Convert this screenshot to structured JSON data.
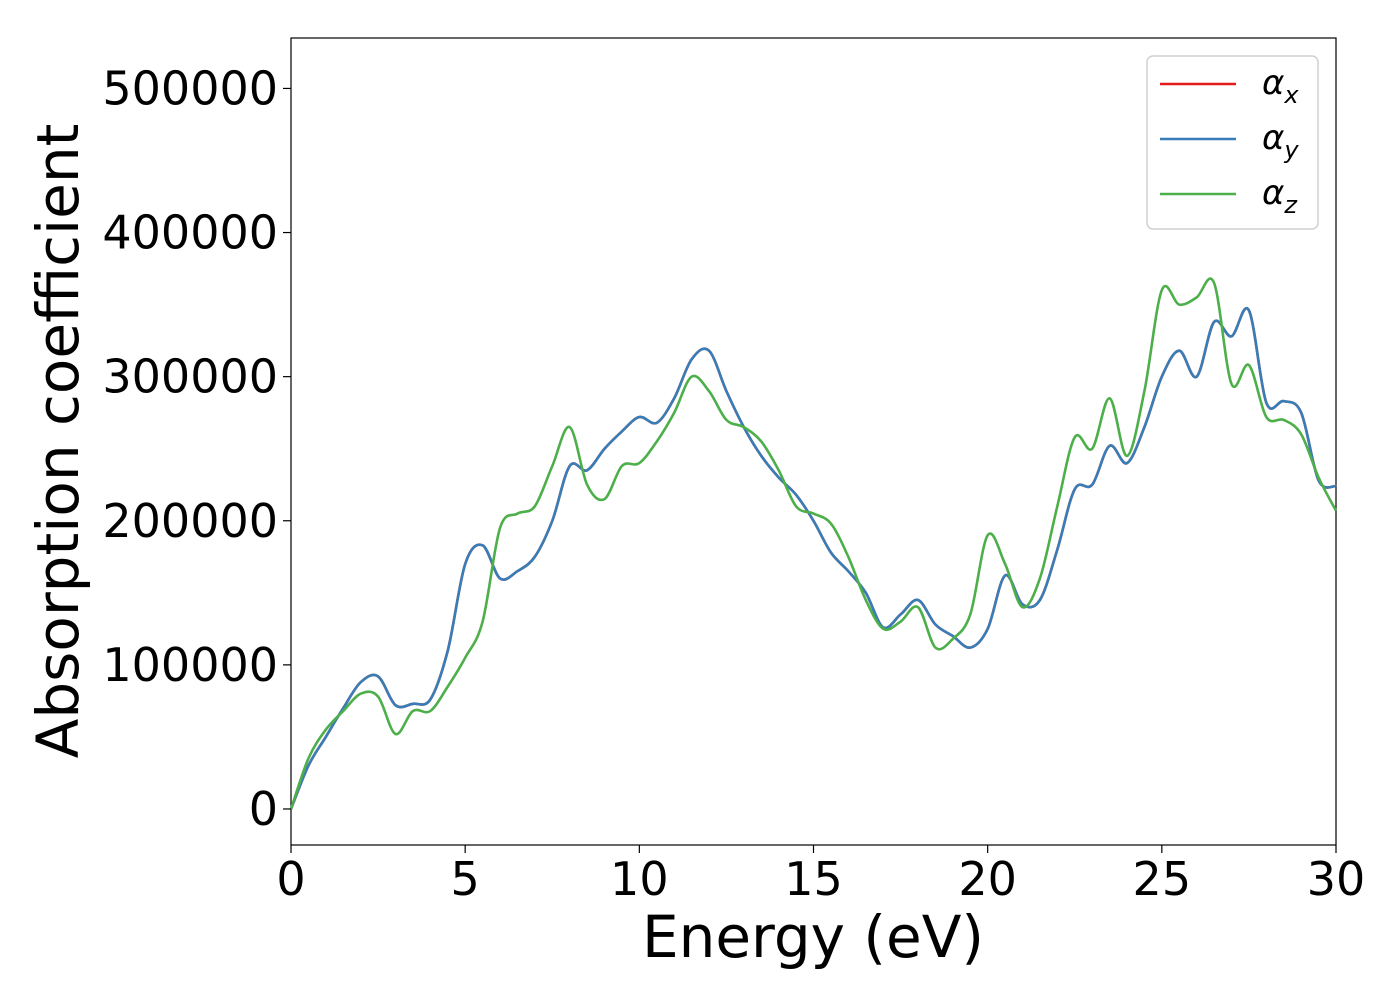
{
  "chart_data": {
    "type": "line",
    "xlabel": "Energy (eV)",
    "ylabel": "Absorption coefficient",
    "xlim": [
      0,
      30
    ],
    "ylim": [
      -25000,
      535000
    ],
    "xticks": [
      0,
      5,
      10,
      15,
      20,
      25,
      30
    ],
    "yticks": [
      0,
      100000,
      200000,
      300000,
      400000,
      500000
    ],
    "grid": false,
    "legend_position": "top-right",
    "x": [
      0,
      0.5,
      1,
      1.5,
      2,
      2.5,
      3,
      3.5,
      4,
      4.5,
      5,
      5.5,
      6,
      6.5,
      7,
      7.5,
      8,
      8.5,
      9,
      9.5,
      10,
      10.5,
      11,
      11.5,
      12,
      12.5,
      13,
      13.5,
      14,
      14.5,
      15,
      15.5,
      16,
      16.5,
      17,
      17.5,
      18,
      18.5,
      19,
      19.5,
      20,
      20.5,
      21,
      21.5,
      22,
      22.5,
      23,
      23.5,
      24,
      24.5,
      25,
      25.5,
      26,
      26.5,
      27,
      27.5,
      28,
      28.5,
      29,
      29.5,
      30
    ],
    "series": [
      {
        "name": "α",
        "subscript": "x",
        "color": "#e41a1c",
        "values": [
          0,
          30000,
          50000,
          70000,
          88000,
          92000,
          72000,
          73000,
          76000,
          110000,
          170000,
          183000,
          160000,
          165000,
          175000,
          200000,
          238000,
          235000,
          250000,
          262000,
          272000,
          268000,
          285000,
          312000,
          318000,
          290000,
          265000,
          245000,
          230000,
          218000,
          200000,
          178000,
          165000,
          150000,
          126000,
          135000,
          145000,
          128000,
          120000,
          112000,
          125000,
          162000,
          142000,
          145000,
          180000,
          222000,
          225000,
          252000,
          240000,
          265000,
          300000,
          318000,
          300000,
          338000,
          328000,
          346000,
          282000,
          283000,
          275000,
          228000,
          224000
        ]
      },
      {
        "name": "α",
        "subscript": "y",
        "color": "#377eb8",
        "values": [
          0,
          30000,
          50000,
          70000,
          88000,
          92000,
          72000,
          73000,
          76000,
          110000,
          170000,
          183000,
          160000,
          165000,
          175000,
          200000,
          238000,
          235000,
          250000,
          262000,
          272000,
          268000,
          285000,
          312000,
          318000,
          290000,
          265000,
          245000,
          230000,
          218000,
          200000,
          178000,
          165000,
          150000,
          126000,
          135000,
          145000,
          128000,
          120000,
          112000,
          125000,
          162000,
          142000,
          145000,
          180000,
          222000,
          225000,
          252000,
          240000,
          265000,
          300000,
          318000,
          300000,
          338000,
          328000,
          346000,
          282000,
          283000,
          275000,
          228000,
          224000
        ]
      },
      {
        "name": "α",
        "subscript": "z",
        "color": "#4daf4a",
        "values": [
          0,
          35000,
          55000,
          68000,
          80000,
          78000,
          52000,
          68000,
          68000,
          85000,
          105000,
          130000,
          195000,
          205000,
          210000,
          238000,
          265000,
          225000,
          215000,
          238000,
          240000,
          255000,
          275000,
          300000,
          290000,
          270000,
          265000,
          255000,
          235000,
          210000,
          205000,
          198000,
          175000,
          145000,
          125000,
          130000,
          140000,
          112000,
          118000,
          135000,
          190000,
          170000,
          140000,
          160000,
          210000,
          258000,
          250000,
          285000,
          245000,
          290000,
          360000,
          350000,
          355000,
          365000,
          295000,
          308000,
          272000,
          270000,
          260000,
          230000,
          207000
        ]
      }
    ]
  }
}
